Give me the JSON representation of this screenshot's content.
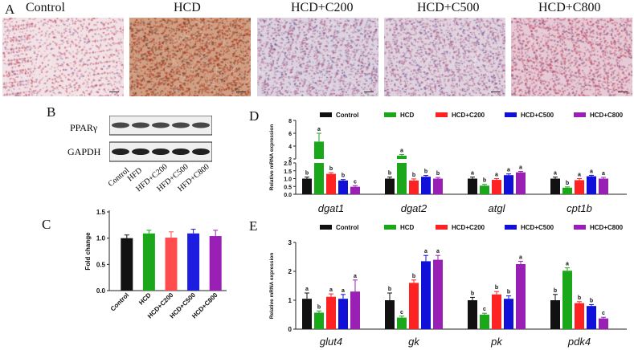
{
  "panel_letters": {
    "A": "A",
    "B": "B",
    "C": "C",
    "D": "D",
    "E": "E"
  },
  "histology": [
    {
      "label": "Control",
      "base": "#f2e2e6",
      "dot": "#c24a63",
      "dot2": "#9b6a9a",
      "density": 0.45
    },
    {
      "label": "HCD",
      "base": "#d1a084",
      "dot": "#a6361d",
      "dot2": "#6f3a2a",
      "density": 0.75
    },
    {
      "label": "HCD+C200",
      "base": "#ddd3e0",
      "dot": "#a85a86",
      "dot2": "#6c5090",
      "density": 0.6
    },
    {
      "label": "HCD+C500",
      "base": "#e0d3df",
      "dot": "#ac5d88",
      "dot2": "#744f91",
      "density": 0.6
    },
    {
      "label": "HCD+C800",
      "base": "#e6cad5",
      "dot": "#bb4665",
      "dot2": "#8a4d7e",
      "density": 0.65
    }
  ],
  "western": {
    "rows": [
      "PPARγ",
      "GAPDH"
    ],
    "lanes": [
      "Control",
      "HFD",
      "HFD+C200",
      "HFD+C500",
      "HFD+C800"
    ]
  },
  "chart_data": [
    {
      "id": "C",
      "type": "bar",
      "ylabel": "Fold change",
      "ylim": [
        0,
        1.5
      ],
      "yticks": [
        0.0,
        0.5,
        1.0,
        1.5
      ],
      "categories": [
        "Control",
        "HCD",
        "HCD+C200",
        "HCD+C500",
        "HCD+C800"
      ],
      "values": [
        1.0,
        1.09,
        1.01,
        1.09,
        1.04
      ],
      "errors": [
        0.06,
        0.06,
        0.11,
        0.08,
        0.11
      ],
      "colors": [
        "#111111",
        "#1aa81a",
        "#ff4d4d",
        "#1d1de0",
        "#9a1fb5"
      ]
    },
    {
      "id": "D",
      "type": "bar",
      "ylabel": "Relative mRNA expression",
      "broken_axis": true,
      "ylim_lower": [
        0,
        2.0
      ],
      "yticks_lower": [
        "0.0",
        "0.5",
        "1.0",
        "1.5",
        "2.0"
      ],
      "ylim_upper": [
        2,
        8
      ],
      "yticks_upper": [
        "2",
        "4",
        "6",
        "8"
      ],
      "legend": [
        "Control",
        "HCD",
        "HCD+C200",
        "HCD+C500",
        "HCD+C800"
      ],
      "legend_position": "top",
      "categories": [
        "dgat1",
        "dgat2",
        "atgl",
        "cpt1b"
      ],
      "series": [
        {
          "name": "Control",
          "values": [
            1.0,
            1.0,
            1.0,
            1.0
          ],
          "errors": [
            0.1,
            0.1,
            0.1,
            0.1
          ],
          "letters": [
            "b",
            "b",
            "a",
            "a"
          ]
        },
        {
          "name": "HCD",
          "values": [
            4.7,
            2.5,
            0.55,
            0.42
          ],
          "errors": [
            1.3,
            0.2,
            0.08,
            0.05
          ],
          "letters": [
            "a",
            "a",
            "b",
            "b"
          ]
        },
        {
          "name": "HCD+C200",
          "values": [
            1.3,
            0.88,
            0.92,
            0.9
          ],
          "errors": [
            0.08,
            0.1,
            0.08,
            0.1
          ],
          "letters": [
            "b",
            "b",
            "a",
            "a"
          ]
        },
        {
          "name": "HCD+C500",
          "values": [
            0.88,
            1.12,
            1.22,
            1.15
          ],
          "errors": [
            0.06,
            0.08,
            0.08,
            0.06
          ],
          "letters": [
            "b",
            "b",
            "a",
            "a"
          ]
        },
        {
          "name": "HCD+C800",
          "values": [
            0.48,
            1.0,
            1.4,
            1.0
          ],
          "errors": [
            0.07,
            0.07,
            0.06,
            0.08
          ],
          "letters": [
            "c",
            "b",
            "a",
            "a"
          ]
        }
      ]
    },
    {
      "id": "E",
      "type": "bar",
      "ylabel": "Relative mRNA expression",
      "ylim": [
        0,
        3
      ],
      "yticks": [
        "0",
        "1",
        "2",
        "3"
      ],
      "legend": [
        "Control",
        "HCD",
        "HCD+C200",
        "HCD+C500",
        "HCD+C800"
      ],
      "legend_position": "top",
      "categories": [
        "glut4",
        "gk",
        "pk",
        "pdk4"
      ],
      "series": [
        {
          "name": "Control",
          "values": [
            1.05,
            1.0,
            1.0,
            1.0
          ],
          "errors": [
            0.2,
            0.25,
            0.1,
            0.2
          ],
          "letters": [
            "a",
            "b",
            "b",
            "b"
          ]
        },
        {
          "name": "HCD",
          "values": [
            0.57,
            0.4,
            0.5,
            2.02
          ],
          "errors": [
            0.06,
            0.05,
            0.05,
            0.1
          ],
          "letters": [
            "b",
            "c",
            "c",
            "a"
          ]
        },
        {
          "name": "HCD+C200",
          "values": [
            1.12,
            1.6,
            1.2,
            0.9
          ],
          "errors": [
            0.1,
            0.1,
            0.1,
            0.05
          ],
          "letters": [
            "a",
            "b",
            "b",
            "b"
          ]
        },
        {
          "name": "HCD+C500",
          "values": [
            1.05,
            2.35,
            1.05,
            0.8
          ],
          "errors": [
            0.15,
            0.2,
            0.1,
            0.05
          ],
          "letters": [
            "a",
            "a",
            "b",
            "b"
          ]
        },
        {
          "name": "HCD+C800",
          "values": [
            1.3,
            2.4,
            2.25,
            0.37
          ],
          "errors": [
            0.4,
            0.15,
            0.1,
            0.04
          ],
          "letters": [
            "a",
            "a",
            "a",
            "c"
          ]
        }
      ]
    }
  ]
}
